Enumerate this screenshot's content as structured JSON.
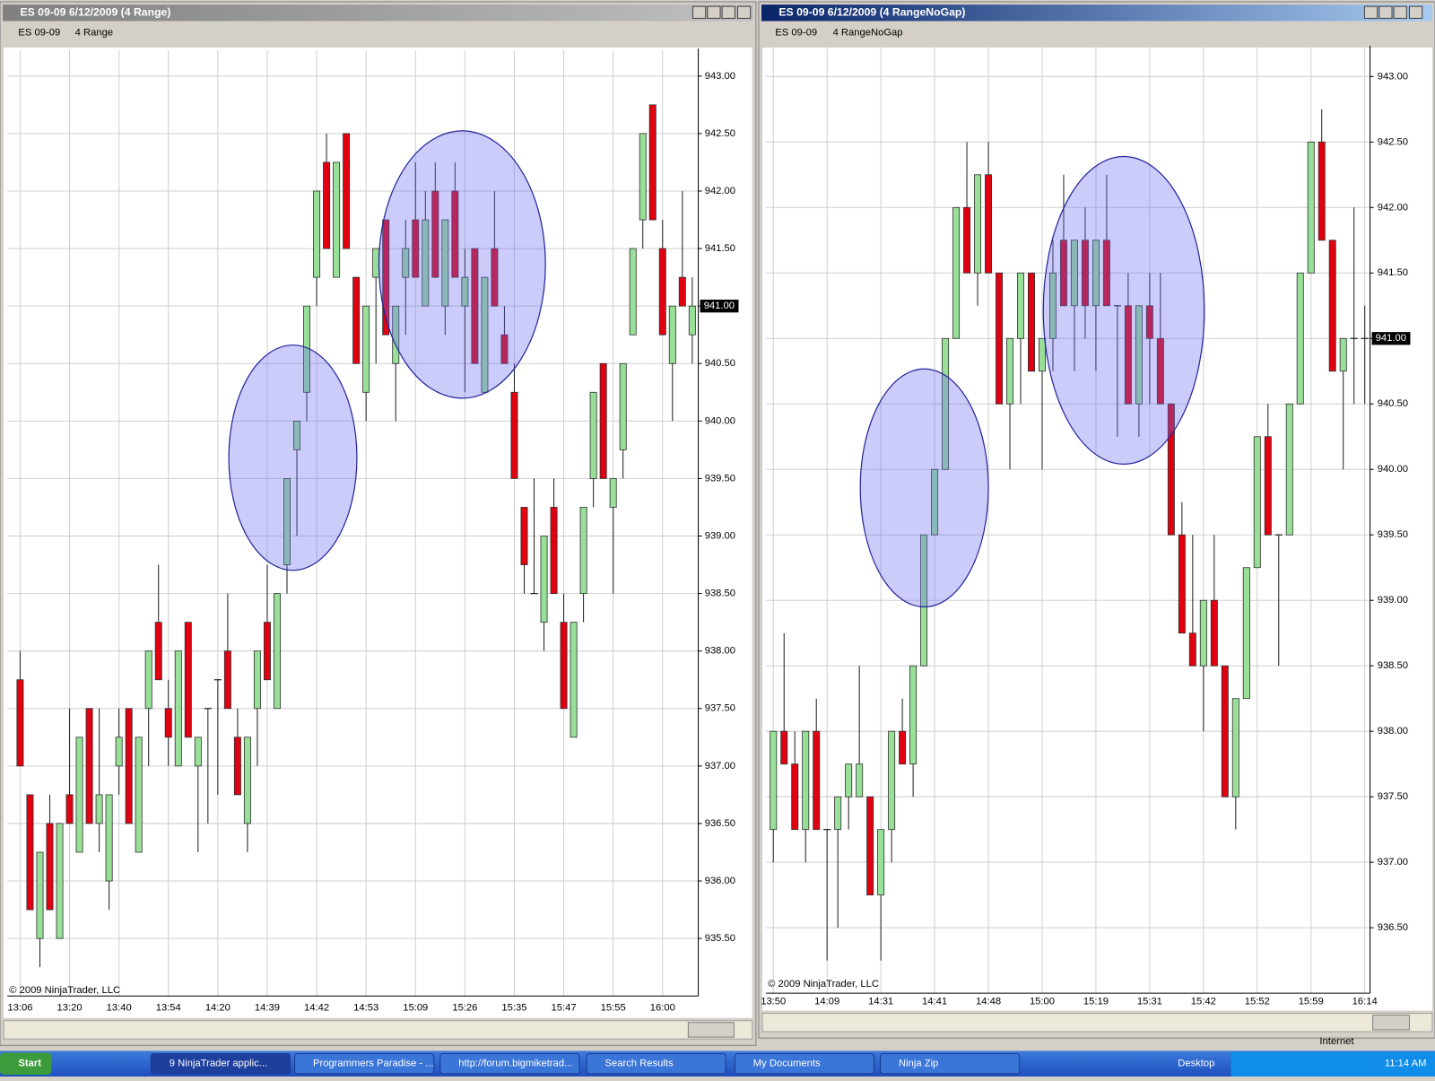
{
  "windows": [
    {
      "title": "ES 09-09  6/12/2009 (4 Range)",
      "instrument": "ES 09-09",
      "period": "4 Range"
    },
    {
      "title": "ES 09-09  6/12/2009 (4 RangeNoGap)",
      "instrument": "ES 09-09",
      "period": "4 RangeNoGap"
    }
  ],
  "chart_data": [
    {
      "type": "candlestick",
      "categories": [
        "13:06",
        null,
        null,
        null,
        null,
        "13:20",
        null,
        null,
        null,
        null,
        "13:40",
        null,
        null,
        null,
        null,
        "13:54",
        null,
        null,
        null,
        null,
        "14:20",
        null,
        null,
        null,
        null,
        "14:39",
        null,
        null,
        null,
        null,
        "14:42",
        null,
        null,
        null,
        null,
        "14:53",
        null,
        null,
        null,
        null,
        "15:09",
        null,
        null,
        null,
        null,
        "15:26",
        null,
        null,
        null,
        null,
        "15:35",
        null,
        null,
        null,
        null,
        "15:47",
        null,
        null,
        null,
        null,
        "15:55",
        null,
        null,
        null,
        null,
        "16:00",
        null,
        null,
        null
      ],
      "open": [
        937.75,
        936.75,
        935.5,
        936.5,
        935.5,
        936.75,
        936.25,
        937.5,
        936.5,
        936,
        937,
        937.5,
        936.25,
        937.5,
        938.25,
        937.5,
        937,
        938.25,
        937,
        937.5,
        937.75,
        938,
        937.25,
        936.5,
        937.5,
        938.25,
        937.5,
        938.75,
        939.75,
        940.25,
        941.25,
        942.25,
        941.25,
        942.5,
        941.25,
        940.25,
        941.25,
        941.75,
        940.5,
        941.25,
        941.75,
        941,
        942,
        941,
        942,
        941,
        941.5,
        940.25,
        941.5,
        940.75,
        940.25,
        939.25,
        938.5,
        938.25,
        939.25,
        938.25,
        937.25,
        938.5,
        939.5,
        940.5,
        939.25,
        939.75,
        940.75,
        941.75,
        942.75,
        941.5,
        940.5,
        941.25,
        940.75
      ],
      "high": [
        938,
        936.75,
        936.25,
        936.75,
        936.5,
        937.5,
        937.25,
        937.5,
        937.5,
        936.75,
        937.5,
        937.5,
        937.25,
        938,
        938.75,
        937.75,
        938,
        938.25,
        937.25,
        937.5,
        937.75,
        938.5,
        937.5,
        937.25,
        938,
        938.75,
        938.5,
        939.5,
        940,
        941,
        942,
        942.5,
        942.25,
        942.5,
        941.25,
        941,
        941.5,
        941.75,
        941,
        941.75,
        942.25,
        942,
        942.25,
        941.75,
        942.25,
        941.5,
        941.5,
        941.25,
        942,
        941,
        940.5,
        939.25,
        939.5,
        939,
        939.5,
        938.5,
        938.25,
        939.25,
        940.25,
        940.5,
        939.5,
        940.5,
        941.5,
        942.5,
        942.75,
        941.75,
        941,
        942,
        941.25
      ],
      "low": [
        937,
        935.75,
        935.25,
        935.75,
        935.5,
        936.5,
        936.25,
        936.5,
        936.25,
        935.75,
        936.75,
        936.5,
        936.25,
        937,
        937.75,
        937,
        937,
        937.25,
        936.25,
        936.5,
        936.75,
        937.5,
        936.75,
        936.25,
        937,
        937.75,
        937.5,
        938.5,
        939,
        940,
        941,
        941.5,
        941.25,
        941.5,
        940.5,
        940,
        940.5,
        940.75,
        940,
        940.75,
        941.25,
        941,
        941.25,
        940.75,
        941.25,
        940.25,
        940.5,
        940.25,
        941,
        940.5,
        939.5,
        938.5,
        938.5,
        938,
        938.5,
        937.5,
        937.25,
        938.25,
        939.25,
        939.5,
        938.5,
        939.5,
        940.75,
        941.5,
        941.75,
        940.75,
        940,
        941,
        940.5
      ],
      "close": [
        937,
        935.75,
        936.25,
        935.75,
        936.5,
        936.5,
        937.25,
        936.5,
        936.75,
        936.75,
        937.25,
        936.5,
        937.25,
        938,
        937.75,
        937.25,
        938,
        937.25,
        937.25,
        937.5,
        937.75,
        937.5,
        936.75,
        937.25,
        938,
        937.75,
        938.5,
        939.5,
        940,
        941,
        942,
        941.5,
        942.25,
        941.5,
        940.5,
        941,
        941.5,
        940.75,
        941,
        941.5,
        941.25,
        941.75,
        941.25,
        941.75,
        941.25,
        941.25,
        940.5,
        941.25,
        941,
        940.5,
        939.5,
        938.75,
        938.5,
        939,
        938.5,
        937.5,
        938.25,
        939.25,
        940.25,
        939.5,
        939.5,
        940.5,
        941.5,
        942.5,
        941.75,
        940.75,
        941,
        941,
        941
      ],
      "ylim": [
        935,
        943.2
      ],
      "yticks": [
        {
          "value": 935.5,
          "label": "935.50"
        },
        {
          "value": 936,
          "label": "936.00"
        },
        {
          "value": 936.5,
          "label": "936.50"
        },
        {
          "value": 937,
          "label": "937.00"
        },
        {
          "value": 937.5,
          "label": "937.50"
        },
        {
          "value": 938,
          "label": "938.00"
        },
        {
          "value": 938.5,
          "label": "938.50"
        },
        {
          "value": 939,
          "label": "939.00"
        },
        {
          "value": 939.5,
          "label": "939.50"
        },
        {
          "value": 940,
          "label": "940.00"
        },
        {
          "value": 940.5,
          "label": "940.50"
        },
        {
          "value": 941,
          "label": "941.00"
        },
        {
          "value": 941.5,
          "label": "941.50"
        },
        {
          "value": 942,
          "label": "942.00"
        },
        {
          "value": 942.5,
          "label": "942.50"
        },
        {
          "value": 943,
          "label": "943.00"
        }
      ],
      "grid": true,
      "up_color": "#98e098",
      "down_color": "#e00010",
      "price_marker": {
        "value": 941,
        "label": "941.00"
      },
      "copyright": "© 2009 NinjaTrader, LLC"
    },
    {
      "type": "candlestick",
      "categories": [
        "13:50",
        null,
        null,
        null,
        null,
        "14:09",
        null,
        null,
        null,
        null,
        "14:31",
        null,
        null,
        null,
        null,
        "14:41",
        null,
        null,
        null,
        null,
        "14:48",
        null,
        null,
        null,
        null,
        "15:00",
        null,
        null,
        null,
        null,
        "15:19",
        null,
        null,
        null,
        null,
        "15:31",
        null,
        null,
        null,
        null,
        "15:42",
        null,
        null,
        null,
        null,
        "15:52",
        null,
        null,
        null,
        null,
        "15:59",
        null,
        null,
        null,
        null,
        "16:14"
      ],
      "open": [
        937.25,
        938,
        937.75,
        937.25,
        938,
        937.25,
        937.25,
        937.5,
        937.5,
        937.5,
        936.75,
        937.25,
        938,
        937.75,
        938.5,
        939.5,
        940,
        941,
        942,
        941.5,
        942.25,
        941.5,
        940.5,
        941,
        941.5,
        940.75,
        941,
        941.75,
        941.25,
        941.75,
        941.25,
        941.75,
        941.25,
        941.25,
        940.5,
        941.25,
        941,
        940.5,
        939.5,
        938.75,
        938.5,
        939,
        938.5,
        937.5,
        938.25,
        939.25,
        940.25,
        939.5,
        939.5,
        940.5,
        941.5,
        942.5,
        941.75,
        940.75,
        941,
        941
      ],
      "high": [
        938,
        938.75,
        938,
        938,
        938.25,
        937.25,
        937.5,
        937.75,
        938.5,
        937.5,
        937.25,
        938,
        938.25,
        938.5,
        939.5,
        940,
        941,
        942,
        942.5,
        942.25,
        942.5,
        941.5,
        941,
        941.5,
        941.5,
        941,
        941.75,
        942.25,
        941.75,
        942,
        941.75,
        942.25,
        941.25,
        941.5,
        941.25,
        941.5,
        941.5,
        940.5,
        939.75,
        939.5,
        939,
        939.5,
        938.5,
        938.25,
        939.25,
        940.25,
        940.5,
        939.5,
        940.5,
        941.5,
        942.5,
        942.75,
        941.75,
        941,
        942,
        941.25
      ],
      "low": [
        937,
        937.75,
        937.25,
        937,
        937.25,
        936.25,
        936.5,
        937.25,
        937.5,
        936.75,
        936.25,
        937,
        937.75,
        937.5,
        938.5,
        939.5,
        940,
        941,
        941.5,
        941.25,
        941.5,
        940.5,
        940,
        940.5,
        940.75,
        940,
        940.75,
        941.25,
        940.75,
        941,
        940.75,
        941.25,
        940.25,
        940.5,
        940.25,
        940.5,
        940.5,
        939.5,
        938.75,
        938.5,
        938,
        938.5,
        937.5,
        937.25,
        938.25,
        939.25,
        939.5,
        938.5,
        939.5,
        940.5,
        941.5,
        941.75,
        940.75,
        940,
        940.5,
        940.5
      ],
      "close": [
        938,
        937.75,
        937.25,
        938,
        937.25,
        937.25,
        937.5,
        937.75,
        937.75,
        936.75,
        937.25,
        938,
        937.75,
        938.5,
        939.5,
        940,
        941,
        942,
        941.5,
        942.25,
        941.5,
        940.5,
        941,
        941.5,
        940.75,
        941,
        941.5,
        941.25,
        941.75,
        941.25,
        941.75,
        941.25,
        941.25,
        940.5,
        941.25,
        941,
        940.5,
        939.5,
        938.75,
        938.5,
        939,
        938.5,
        937.5,
        938.25,
        939.25,
        940.25,
        939.5,
        939.5,
        940.5,
        941.5,
        942.5,
        941.75,
        940.75,
        941,
        941,
        941
      ],
      "ylim": [
        936,
        943.2
      ],
      "yticks": [
        {
          "value": 936.5,
          "label": "936.50"
        },
        {
          "value": 937,
          "label": "937.00"
        },
        {
          "value": 937.5,
          "label": "937.50"
        },
        {
          "value": 938,
          "label": "938.00"
        },
        {
          "value": 938.5,
          "label": "938.50"
        },
        {
          "value": 939,
          "label": "939.00"
        },
        {
          "value": 939.5,
          "label": "939.50"
        },
        {
          "value": 940,
          "label": "940.00"
        },
        {
          "value": 940.5,
          "label": "940.50"
        },
        {
          "value": 941,
          "label": "941.00"
        },
        {
          "value": 941.5,
          "label": "941.50"
        },
        {
          "value": 942,
          "label": "942.00"
        },
        {
          "value": 942.5,
          "label": "942.50"
        },
        {
          "value": 943,
          "label": "943.00"
        }
      ],
      "grid": true,
      "up_color": "#98e098",
      "down_color": "#e00010",
      "price_marker": {
        "value": 941,
        "label": "941.00"
      },
      "copyright": "© 2009 NinjaTrader, LLC"
    }
  ],
  "taskbar": {
    "start": "Start",
    "buttons": [
      "9 NinjaTrader applic...",
      "Programmers Paradise - ...",
      "http://forum.bigmiketrad...",
      "Search Results",
      "My Documents",
      "Ninja Zip"
    ],
    "toolbar": "Desktop",
    "clock": "11:14 AM",
    "status": "Internet"
  }
}
